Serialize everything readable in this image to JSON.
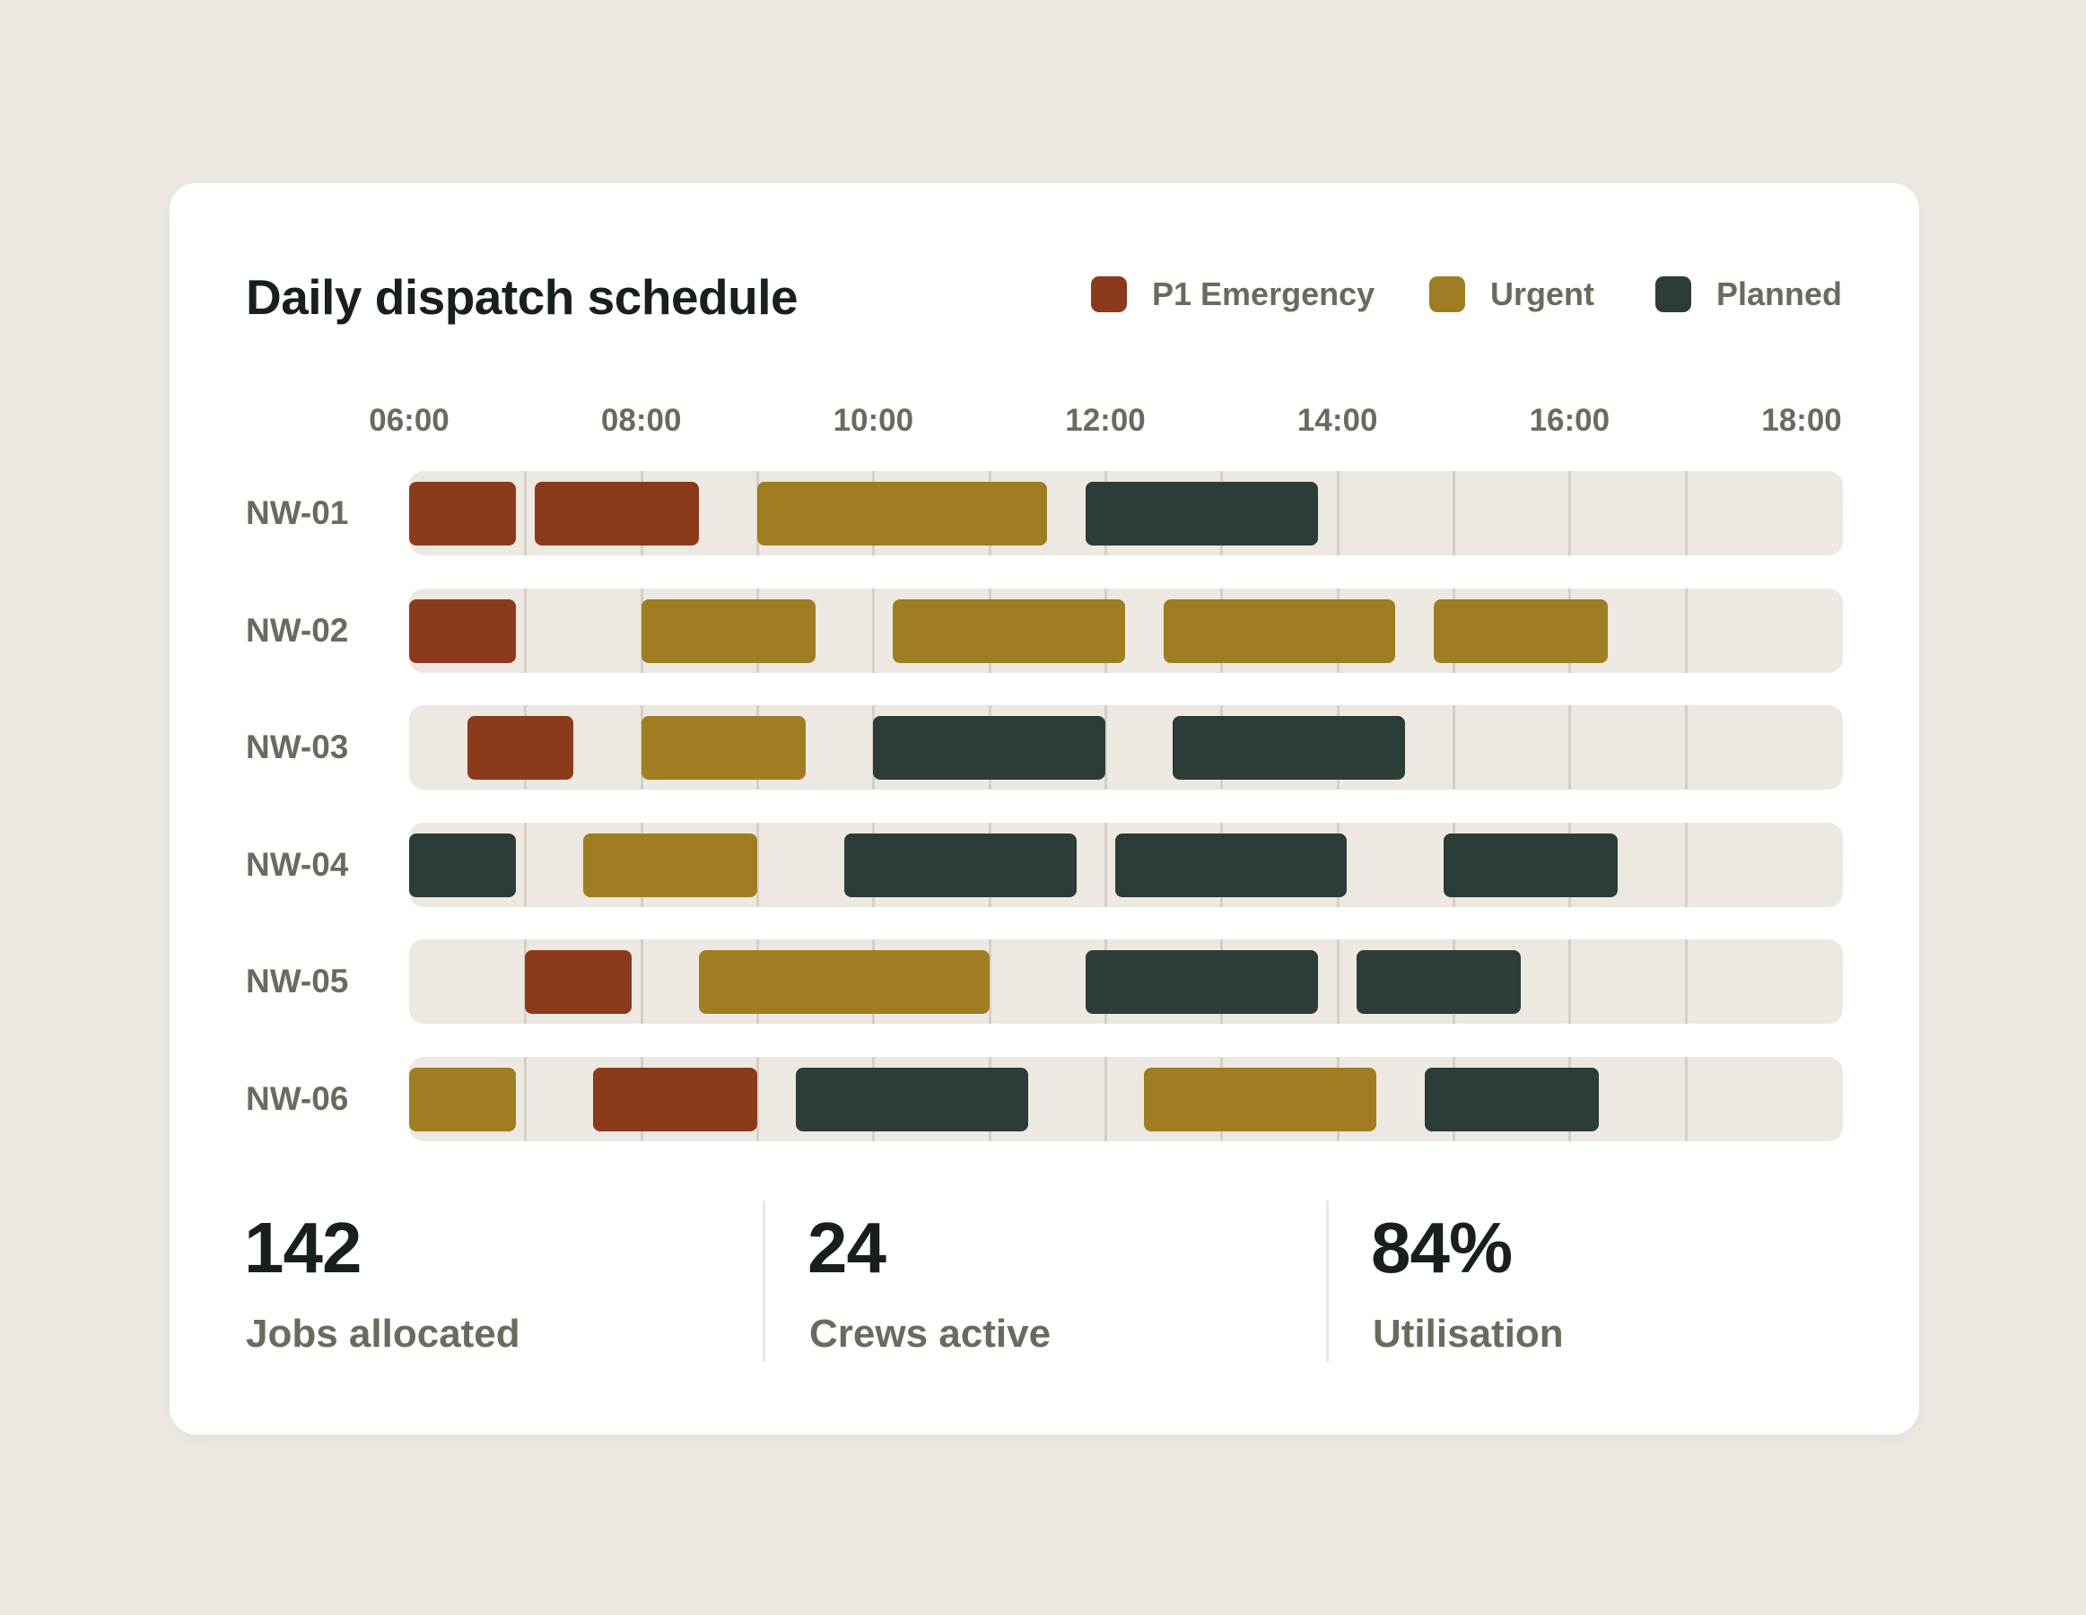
{
  "card": {
    "title": "Daily dispatch schedule"
  },
  "legend": [
    {
      "label": "P1 Emergency",
      "color": "#8B3A1C"
    },
    {
      "label": "Urgent",
      "color": "#A07D22"
    },
    {
      "label": "Planned",
      "color": "#2C3C39"
    }
  ],
  "chart_data": {
    "type": "gantt",
    "title": "Daily dispatch schedule",
    "x_ticks": [
      "06:00",
      "08:00",
      "10:00",
      "12:00",
      "14:00",
      "16:00",
      "18:00"
    ],
    "x_range": [
      "06:00",
      "18:00"
    ],
    "grid": true,
    "legend_position": "top-right",
    "categories": [
      "P1 Emergency",
      "Urgent",
      "Planned"
    ],
    "rows": [
      {
        "label": "NW-01",
        "jobs": [
          {
            "start": "06:00",
            "end": "06:55",
            "category": "P1 Emergency"
          },
          {
            "start": "07:05",
            "end": "08:30",
            "category": "P1 Emergency"
          },
          {
            "start": "09:00",
            "end": "11:30",
            "category": "Urgent"
          },
          {
            "start": "11:50",
            "end": "13:50",
            "category": "Planned"
          }
        ]
      },
      {
        "label": "NW-02",
        "jobs": [
          {
            "start": "06:00",
            "end": "06:55",
            "category": "P1 Emergency"
          },
          {
            "start": "08:00",
            "end": "09:30",
            "category": "Urgent"
          },
          {
            "start": "10:10",
            "end": "12:10",
            "category": "Urgent"
          },
          {
            "start": "12:30",
            "end": "14:30",
            "category": "Urgent"
          },
          {
            "start": "14:50",
            "end": "16:20",
            "category": "Urgent"
          }
        ]
      },
      {
        "label": "NW-03",
        "jobs": [
          {
            "start": "06:30",
            "end": "07:25",
            "category": "P1 Emergency"
          },
          {
            "start": "08:00",
            "end": "09:25",
            "category": "Urgent"
          },
          {
            "start": "10:00",
            "end": "12:00",
            "category": "Planned"
          },
          {
            "start": "12:35",
            "end": "14:35",
            "category": "Planned"
          }
        ]
      },
      {
        "label": "NW-04",
        "jobs": [
          {
            "start": "06:00",
            "end": "06:55",
            "category": "Planned"
          },
          {
            "start": "07:30",
            "end": "09:00",
            "category": "Urgent"
          },
          {
            "start": "09:45",
            "end": "11:45",
            "category": "Planned"
          },
          {
            "start": "12:05",
            "end": "14:05",
            "category": "Planned"
          },
          {
            "start": "14:55",
            "end": "16:25",
            "category": "Planned"
          }
        ]
      },
      {
        "label": "NW-05",
        "jobs": [
          {
            "start": "07:00",
            "end": "07:55",
            "category": "P1 Emergency"
          },
          {
            "start": "08:30",
            "end": "11:00",
            "category": "Urgent"
          },
          {
            "start": "11:50",
            "end": "13:50",
            "category": "Planned"
          },
          {
            "start": "14:10",
            "end": "15:35",
            "category": "Planned"
          }
        ]
      },
      {
        "label": "NW-06",
        "jobs": [
          {
            "start": "06:00",
            "end": "06:55",
            "category": "Urgent"
          },
          {
            "start": "07:35",
            "end": "09:00",
            "category": "P1 Emergency"
          },
          {
            "start": "09:20",
            "end": "11:20",
            "category": "Planned"
          },
          {
            "start": "12:20",
            "end": "14:20",
            "category": "Urgent"
          },
          {
            "start": "14:45",
            "end": "16:15",
            "category": "Planned"
          }
        ]
      }
    ]
  },
  "stats": [
    {
      "value": "142",
      "label": "Jobs allocated"
    },
    {
      "value": "24",
      "label": "Crews active"
    },
    {
      "value": "84%",
      "label": "Utilisation"
    }
  ]
}
